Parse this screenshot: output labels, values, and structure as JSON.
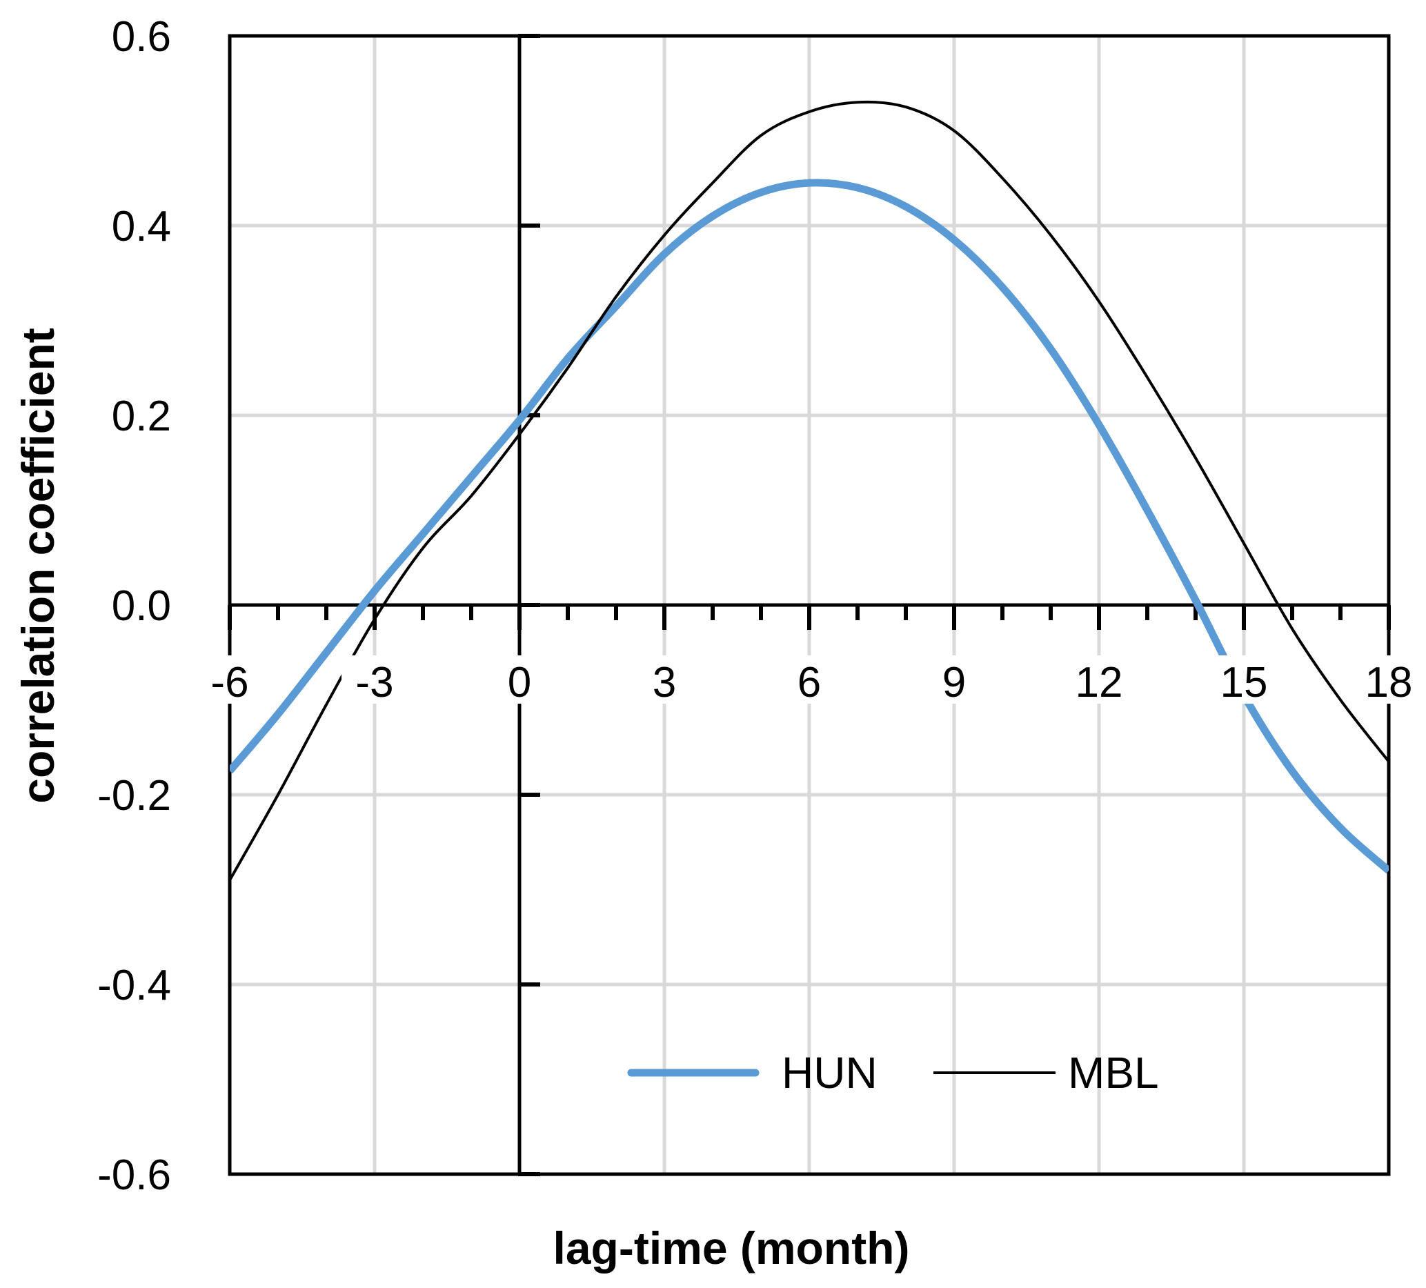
{
  "chart_data": {
    "type": "line",
    "title": "",
    "xlabel": "lag-time (month)",
    "ylabel": "correlation coefficient",
    "xlim": [
      -6,
      18
    ],
    "ylim": [
      -0.6,
      0.6
    ],
    "x_ticks": [
      "-6",
      "-3",
      "0",
      "3",
      "6",
      "9",
      "12",
      "15",
      "18"
    ],
    "y_ticks": [
      "0.6",
      "0.4",
      "0.2",
      "0.0",
      "-0.2",
      "-0.4",
      "-0.6"
    ],
    "grid": true,
    "legend_position": "bottom-right",
    "x": [
      -6,
      -5,
      -4,
      -3,
      -2,
      -1,
      0,
      1,
      2,
      3,
      4,
      5,
      6,
      7,
      8,
      9,
      10,
      11,
      12,
      13,
      14,
      15,
      16,
      17,
      18
    ],
    "series": [
      {
        "name": "HUN",
        "color": "#5b9bd5",
        "values": [
          -0.175,
          -0.115,
          -0.05,
          0.015,
          0.075,
          0.135,
          0.195,
          0.26,
          0.315,
          0.37,
          0.41,
          0.435,
          0.445,
          0.44,
          0.42,
          0.385,
          0.335,
          0.27,
          0.19,
          0.1,
          0.005,
          -0.095,
          -0.175,
          -0.235,
          -0.28
        ]
      },
      {
        "name": "MBL",
        "color": "#000000",
        "values": [
          -0.29,
          -0.2,
          -0.105,
          -0.015,
          0.06,
          0.115,
          0.18,
          0.25,
          0.325,
          0.39,
          0.445,
          0.495,
          0.52,
          0.53,
          0.525,
          0.5,
          0.45,
          0.39,
          0.32,
          0.24,
          0.155,
          0.065,
          -0.025,
          -0.1,
          -0.165
        ]
      }
    ]
  }
}
